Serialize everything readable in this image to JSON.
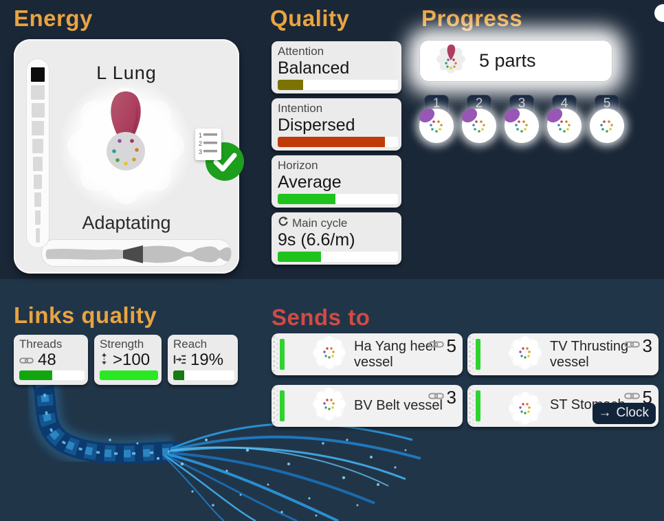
{
  "colors": {
    "bg_top": "#1a2737",
    "bg_bottom": "#213549",
    "header_orange": "#e9a440",
    "header_red": "#d14b44",
    "navy_button": "#12243a",
    "meter_green": "#2fd32f"
  },
  "energy": {
    "title": "Energy",
    "organ": "L Lung",
    "state": "Adaptating"
  },
  "quality": {
    "title": "Quality",
    "cards": [
      {
        "label": "Attention",
        "value": "Balanced",
        "pct": 21,
        "color": "#7b7405"
      },
      {
        "label": "Intention",
        "value": "Dispersed",
        "pct": 89,
        "color": "#c03b0a"
      },
      {
        "label": "Horizon",
        "value": "Average",
        "pct": 48,
        "color": "#1fc31c"
      },
      {
        "label": "Main cycle",
        "icon": "cycle-icon",
        "value": "9s (6.6/m)",
        "pct": 36,
        "color": "#1fc31c"
      }
    ]
  },
  "progress": {
    "title": "Progress",
    "parts_label": "5 parts",
    "tokens": [
      {
        "num": "1",
        "petal": true
      },
      {
        "num": "2",
        "petal": true
      },
      {
        "num": "3",
        "petal": true
      },
      {
        "num": "4",
        "petal": true
      },
      {
        "num": "5",
        "petal": false
      }
    ]
  },
  "links_quality": {
    "title": "Links quality",
    "cards": [
      {
        "label": "Threads",
        "icon": "chain-link-icon",
        "value": "48",
        "pct": 50,
        "color": "#12a60e"
      },
      {
        "label": "Strength",
        "icon": "vertical-range-icon",
        "value": ">100",
        "pct": 100,
        "color": "#2ae822"
      },
      {
        "label": "Reach",
        "icon": "reach-icon",
        "value": "19%",
        "pct": 18,
        "color": "#147c11"
      }
    ]
  },
  "sends_to": {
    "title": "Sends to",
    "cards": [
      {
        "name": "Ha Yang heel vessel",
        "links": "5"
      },
      {
        "name": "TV Thrusting vessel",
        "links": "3"
      },
      {
        "name": "BV Belt vessel",
        "links": "3"
      },
      {
        "name": "ST Stomach",
        "links": "5",
        "button_arrow": "→",
        "button_label": "Clock"
      }
    ]
  }
}
